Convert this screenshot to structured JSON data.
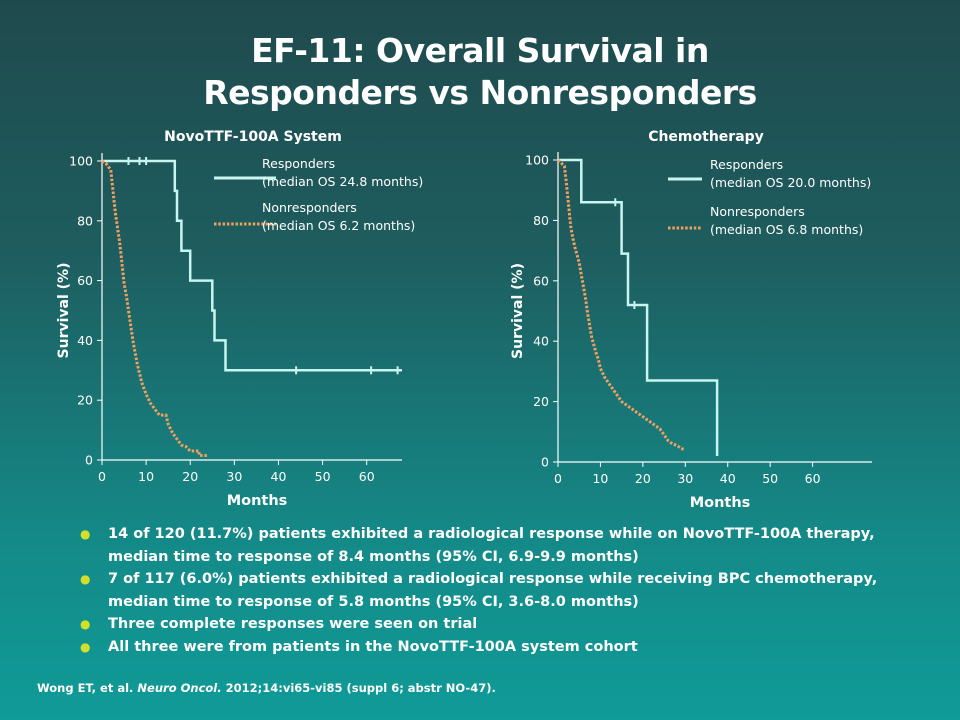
{
  "slide": {
    "title_line1": "EF-11: Overall Survival in",
    "title_line2": "Responders vs Nonresponders"
  },
  "colors": {
    "responders": "#c8f5f0",
    "nonresponders": "#f0a060",
    "bullet": "#d4df2a"
  },
  "bullets": [
    "14 of 120 (11.7%) patients exhibited a radiological response while on NovoTTF-100A therapy, median time to response of 8.4 months (95% CI, 6.9-9.9 months)",
    "7 of 117 (6.0%) patients exhibited a radiological response while receiving BPC chemotherapy, median time to response of 5.8 months (95% CI, 3.6-8.0 months)",
    "Three complete responses were seen on trial",
    "All three were from patients in the NovoTTF-100A system cohort"
  ],
  "citation": {
    "prefix": "Wong ET, et al.",
    "journal": "Neuro Oncol.",
    "suffix": "2012;14:vi65-vi85 (suppl 6; abstr NO-47)."
  },
  "chart_data": [
    {
      "type": "line",
      "title": "NovoTTF-100A System",
      "xlabel": "Months",
      "ylabel": "Survival (%)",
      "xlim": [
        0,
        68
      ],
      "ylim": [
        0,
        100
      ],
      "xticks": [
        0,
        10,
        20,
        30,
        40,
        50,
        60
      ],
      "yticks": [
        0,
        20,
        40,
        60,
        80,
        100
      ],
      "series": [
        {
          "name": "Responders",
          "label_note": "(median OS 24.8 months)",
          "style": "solid",
          "points": [
            [
              0,
              100
            ],
            [
              16.5,
              100
            ],
            [
              16.5,
              90
            ],
            [
              17,
              90
            ],
            [
              17,
              80
            ],
            [
              18,
              80
            ],
            [
              18,
              70
            ],
            [
              20,
              70
            ],
            [
              20,
              60
            ],
            [
              25,
              60
            ],
            [
              25,
              50
            ],
            [
              25.5,
              50
            ],
            [
              25.5,
              40
            ],
            [
              28,
              40
            ],
            [
              28,
              30
            ],
            [
              68,
              30
            ]
          ],
          "censor": [
            [
              6,
              100
            ],
            [
              8.5,
              100
            ],
            [
              10,
              100
            ],
            [
              44,
              30
            ],
            [
              61,
              30
            ],
            [
              67,
              30
            ]
          ]
        },
        {
          "name": "Nonresponders",
          "label_note": "(median OS 6.2 months)",
          "style": "dotted",
          "points": [
            [
              0,
              100
            ],
            [
              1,
              99
            ],
            [
              2,
              97
            ],
            [
              2.5,
              90
            ],
            [
              3,
              83
            ],
            [
              3.5,
              78
            ],
            [
              4,
              73
            ],
            [
              4.5,
              66
            ],
            [
              5,
              59
            ],
            [
              5.5,
              55
            ],
            [
              6,
              50
            ],
            [
              6.5,
              45
            ],
            [
              7,
              40
            ],
            [
              7.5,
              36
            ],
            [
              8,
              32
            ],
            [
              8.5,
              29
            ],
            [
              9,
              26
            ],
            [
              10,
              22
            ],
            [
              11,
              19
            ],
            [
              12,
              17
            ],
            [
              13,
              15
            ],
            [
              14.5,
              15
            ],
            [
              15,
              12
            ],
            [
              16,
              9
            ],
            [
              17,
              7
            ],
            [
              18,
              5
            ],
            [
              19,
              4.5
            ],
            [
              20,
              3
            ],
            [
              22,
              3
            ],
            [
              22,
              1.5
            ],
            [
              24,
              1.5
            ]
          ],
          "censor": []
        }
      ]
    },
    {
      "type": "line",
      "title": "Chemotherapy",
      "xlabel": "Months",
      "ylabel": "Survival (%)",
      "xlim": [
        0,
        74
      ],
      "ylim": [
        0,
        100
      ],
      "xticks": [
        0,
        10,
        20,
        30,
        40,
        50,
        60
      ],
      "yticks": [
        0,
        20,
        40,
        60,
        80,
        100
      ],
      "series": [
        {
          "name": "Responders",
          "label_note": "(median OS 20.0 months)",
          "style": "solid",
          "points": [
            [
              0,
              100
            ],
            [
              5.5,
              100
            ],
            [
              5.5,
              86
            ],
            [
              15,
              86
            ],
            [
              15,
              69
            ],
            [
              16.5,
              69
            ],
            [
              16.5,
              52
            ],
            [
              21,
              52
            ],
            [
              21,
              27
            ],
            [
              37.5,
              27
            ],
            [
              37.5,
              2
            ]
          ],
          "censor": [
            [
              13.5,
              86
            ],
            [
              18,
              52
            ]
          ]
        },
        {
          "name": "Nonresponders",
          "label_note": "(median OS 6.8 months)",
          "style": "dotted",
          "points": [
            [
              0,
              100
            ],
            [
              1.5,
              98
            ],
            [
              2,
              92
            ],
            [
              2.5,
              85
            ],
            [
              3,
              78
            ],
            [
              3.5,
              74
            ],
            [
              4,
              71
            ],
            [
              5,
              66
            ],
            [
              5.5,
              62
            ],
            [
              6,
              58
            ],
            [
              6.5,
              54
            ],
            [
              7,
              49
            ],
            [
              7.5,
              45
            ],
            [
              8,
              41
            ],
            [
              9,
              36
            ],
            [
              9.5,
              34
            ],
            [
              10,
              31
            ],
            [
              11,
              28
            ],
            [
              12,
              26
            ],
            [
              13,
              24
            ],
            [
              14,
              22
            ],
            [
              15,
              20
            ],
            [
              16,
              19
            ],
            [
              17,
              18
            ],
            [
              18,
              17
            ],
            [
              19,
              16
            ],
            [
              20,
              15
            ],
            [
              21,
              14
            ],
            [
              22,
              13
            ],
            [
              23,
              12
            ],
            [
              24,
              11
            ],
            [
              25,
              9
            ],
            [
              26,
              7
            ],
            [
              27,
              6
            ],
            [
              28,
              5.5
            ],
            [
              29,
              4.5
            ],
            [
              30,
              4
            ]
          ],
          "censor": []
        }
      ]
    }
  ]
}
